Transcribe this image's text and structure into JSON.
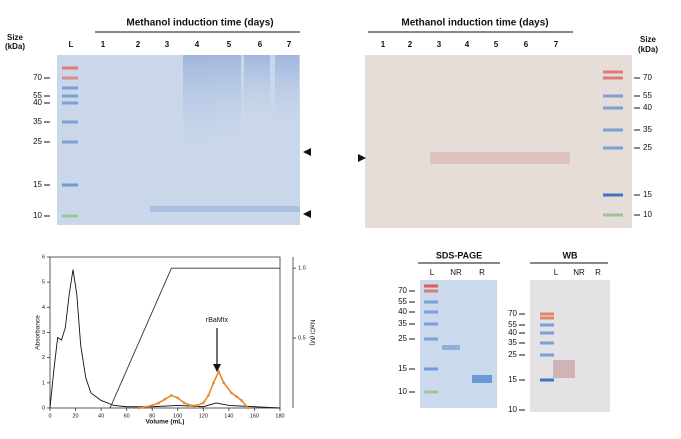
{
  "gel_coomassie": {
    "size_label": [
      "Size",
      "(kDa)"
    ],
    "ladder_label": "L",
    "title": "Methanol induction time (days)",
    "lanes": [
      "1",
      "2",
      "3",
      "4",
      "5",
      "6",
      "7"
    ],
    "markers": [
      "70",
      "55",
      "40",
      "35",
      "25",
      "15",
      "10"
    ]
  },
  "gel_western": {
    "size_label": [
      "Size",
      "(kDa)"
    ],
    "title": "Methanol induction time (days)",
    "lanes": [
      "1",
      "2",
      "3",
      "4",
      "5",
      "6",
      "7"
    ],
    "markers": [
      "70",
      "55",
      "40",
      "35",
      "25",
      "15",
      "10"
    ]
  },
  "sds_page": {
    "title": "SDS-PAGE",
    "lanes": [
      "L",
      "NR",
      "R"
    ],
    "markers": [
      "70",
      "55",
      "40",
      "35",
      "25",
      "15",
      "10"
    ]
  },
  "wb": {
    "title": "WB",
    "lanes": [
      "L",
      "NR",
      "R"
    ],
    "markers": [
      "70",
      "55",
      "40",
      "35",
      "25",
      "15",
      "10"
    ]
  },
  "chart_data": {
    "type": "line",
    "xlabel": "Volume (mL)",
    "ylabel": "Absorbance",
    "y2label": "NaCl (M)",
    "xlim": [
      0,
      180
    ],
    "xticks": [
      0,
      20,
      40,
      60,
      80,
      100,
      120,
      140,
      160,
      180
    ],
    "ylim": [
      0,
      6
    ],
    "yticks": [
      0,
      1,
      2,
      3,
      4,
      5,
      6
    ],
    "y2lim": [
      0,
      1.08
    ],
    "y2ticks": [
      {
        "value": 0.5,
        "label": "0.5"
      },
      {
        "value": 1,
        "label": "1.0"
      }
    ],
    "annotation": "rBaMtx",
    "series": [
      {
        "color": "#111111",
        "x": [
          0,
          3,
          6,
          9,
          12,
          15,
          18,
          21,
          24,
          28,
          32,
          40,
          50,
          60,
          80,
          100,
          120,
          130,
          140,
          160,
          180
        ],
        "values": [
          0,
          1.5,
          2.8,
          2.7,
          3.2,
          4.5,
          5.5,
          4.5,
          2.5,
          1.2,
          0.6,
          0.3,
          0.1,
          0.05,
          0.05,
          0.1,
          0.05,
          0.2,
          0.1,
          0.05,
          0
        ]
      },
      {
        "color": "#e8892b",
        "x": [
          70,
          80,
          85,
          90,
          95,
          100,
          105,
          110,
          115,
          120,
          124,
          128,
          132,
          136,
          142,
          146,
          150,
          155
        ],
        "values": [
          0,
          0.1,
          0.2,
          0.35,
          0.5,
          0.4,
          0.2,
          0.1,
          0.1,
          0.2,
          0.5,
          1.0,
          1.45,
          1.0,
          0.6,
          0.45,
          0.3,
          0
        ]
      },
      {
        "color": "#333333",
        "axis": "y2",
        "x": [
          47,
          95,
          180
        ],
        "values": [
          0,
          1,
          1
        ]
      }
    ]
  }
}
